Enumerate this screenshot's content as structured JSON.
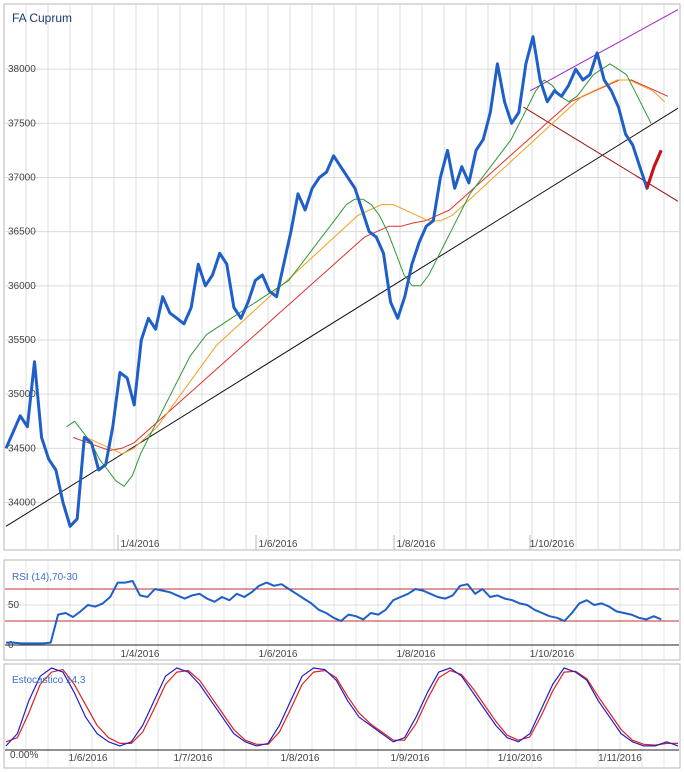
{
  "chart_data": [
    {
      "type": "line",
      "title": "FA Cuprum",
      "ylim": [
        33700,
        38500
      ],
      "y_ticks": [
        34000,
        34500,
        35000,
        35500,
        36000,
        36500,
        37000,
        37500,
        38000
      ],
      "x_tick_labels": [
        "1/4/2016",
        "1/6/2016",
        "1/8/2016",
        "1/10/2016"
      ],
      "grid": true,
      "legend": "none",
      "series": [
        {
          "key": "price",
          "color": "#1f5fc8",
          "values": [
            34500,
            34650,
            34800,
            34700,
            35300,
            34600,
            34400,
            34300,
            34000,
            33780,
            33850,
            34600,
            34550,
            34300,
            34350,
            34700,
            35200,
            35150,
            34900,
            35500,
            35700,
            35600,
            35900,
            35750,
            35700,
            35650,
            35800,
            36200,
            36000,
            36100,
            36300,
            36200,
            35800,
            35700,
            35850,
            36050,
            36100,
            35950,
            35900,
            36200,
            36500,
            36850,
            36700,
            36900,
            37000,
            37050,
            37200,
            37100,
            37000,
            36900,
            36700,
            36500,
            36450,
            36300,
            35850,
            35700,
            35900,
            36200,
            36400,
            36550,
            36600,
            37000,
            37250,
            36900,
            37100,
            36950,
            37250,
            37350,
            37600,
            38050,
            37700,
            37500,
            37600,
            38050,
            38300,
            37900,
            37700,
            37800,
            37750,
            37850,
            38000,
            37900,
            37950,
            38150,
            37900,
            37800,
            37650,
            37400,
            37300,
            37100,
            36900,
            37100,
            37250
          ]
        },
        {
          "key": "ma_short",
          "color": "#2e9a35",
          "values": [
            34700,
            34750,
            34650,
            34550,
            34400,
            34300,
            34200,
            34150,
            34250,
            34450,
            34600,
            34750,
            34900,
            35050,
            35200,
            35350,
            35450,
            35550,
            35600,
            35650,
            35700,
            35750,
            35800,
            35850,
            35900,
            35950,
            36000,
            36050,
            36150,
            36250,
            36350,
            36450,
            36550,
            36650,
            36750,
            36800,
            36800,
            36750,
            36650,
            36500,
            36300,
            36100,
            36000,
            36000,
            36100,
            36250,
            36400,
            36550,
            36700,
            36850,
            36950,
            37050,
            37150,
            37250,
            37350,
            37500,
            37650,
            37800,
            37900,
            37850,
            37750,
            37700,
            37750,
            37850,
            37950,
            38000,
            38050,
            38000,
            37950,
            37800,
            37650,
            37500
          ]
        },
        {
          "key": "ma_medium",
          "color": "#f0a020",
          "values": [
            34600,
            34550,
            34500,
            34450,
            34500,
            34600,
            34700,
            34850,
            35000,
            35150,
            35300,
            35450,
            35550,
            35650,
            35750,
            35850,
            35950,
            36050,
            36150,
            36250,
            36350,
            36450,
            36550,
            36650,
            36700,
            36750,
            36750,
            36700,
            36650,
            36600,
            36600,
            36650,
            36750,
            36850,
            36950,
            37050,
            37150,
            37250,
            37350,
            37450,
            37550,
            37650,
            37750,
            37800,
            37850,
            37900,
            37900,
            37850,
            37800,
            37700
          ]
        },
        {
          "key": "ma_long",
          "color": "#e03030",
          "values": [
            34600,
            34560,
            34520,
            34480,
            34500,
            34550,
            34650,
            34750,
            34850,
            34950,
            35050,
            35150,
            35250,
            35350,
            35450,
            35550,
            35650,
            35750,
            35850,
            35950,
            36050,
            36150,
            36250,
            36350,
            36450,
            36500,
            36550,
            36550,
            36580,
            36600,
            36650,
            36700,
            36800,
            36900,
            37000,
            37100,
            37200,
            37300,
            37400,
            37500,
            37600,
            37700,
            37750,
            37800,
            37850,
            37900,
            37900,
            37850,
            37800,
            37750
          ]
        }
      ],
      "trendlines": [
        {
          "key": "support",
          "color": "#111111",
          "from": [
            0.0,
            33780
          ],
          "to": [
            1.0,
            37640
          ]
        },
        {
          "key": "upper",
          "color": "#a020c8",
          "from": [
            0.78,
            37800
          ],
          "to": [
            1.0,
            38550
          ]
        },
        {
          "key": "fall",
          "color": "#a01010",
          "from": [
            0.77,
            37650
          ],
          "to": [
            1.0,
            36780
          ]
        }
      ]
    },
    {
      "type": "line",
      "title": "RSI (14),70-30",
      "ylim": [
        0,
        100
      ],
      "y_ticks": [
        0,
        50
      ],
      "levels": [
        70,
        30
      ],
      "x_tick_labels": [
        "1/4/2016",
        "1/6/2016",
        "1/8/2016",
        "1/10/2016"
      ],
      "series": [
        {
          "key": "rsi",
          "color": "#1f5fc8",
          "values": [
            3,
            3,
            2,
            2,
            2,
            2,
            3,
            38,
            40,
            35,
            42,
            50,
            48,
            52,
            60,
            78,
            78,
            80,
            62,
            60,
            70,
            68,
            66,
            62,
            58,
            62,
            64,
            58,
            54,
            60,
            56,
            64,
            60,
            66,
            74,
            78,
            74,
            76,
            70,
            64,
            58,
            52,
            44,
            40,
            34,
            30,
            38,
            36,
            32,
            40,
            38,
            44,
            56,
            60,
            64,
            70,
            68,
            64,
            60,
            58,
            62,
            74,
            76,
            64,
            70,
            60,
            62,
            58,
            56,
            52,
            50,
            44,
            40,
            36,
            34,
            30,
            40,
            52,
            56,
            50,
            52,
            48,
            42,
            40,
            38,
            34,
            32,
            36,
            32
          ]
        }
      ]
    },
    {
      "type": "line",
      "title": "Estocástico 14,3",
      "ylim": [
        0,
        100
      ],
      "y_ticks": [
        0
      ],
      "y_tick_labels": [
        "0.00%"
      ],
      "x_tick_labels": [
        "1/6/2016",
        "1/7/2016",
        "1/8/2016",
        "1/9/2016",
        "1/10/2016",
        "1/11/2016"
      ],
      "series": [
        {
          "key": "k",
          "color": "#2020c8",
          "values": [
            5,
            20,
            60,
            90,
            100,
            95,
            70,
            40,
            20,
            10,
            5,
            10,
            30,
            60,
            90,
            100,
            95,
            80,
            60,
            40,
            20,
            10,
            5,
            8,
            30,
            60,
            90,
            100,
            98,
            85,
            60,
            40,
            30,
            20,
            10,
            15,
            40,
            70,
            95,
            100,
            90,
            70,
            50,
            30,
            15,
            10,
            20,
            50,
            80,
            100,
            95,
            85,
            60,
            40,
            20,
            10,
            5,
            5,
            10,
            5
          ]
        },
        {
          "key": "d",
          "color": "#e02020",
          "values": [
            10,
            15,
            45,
            80,
            95,
            98,
            80,
            55,
            30,
            15,
            8,
            8,
            22,
            50,
            80,
            95,
            97,
            85,
            65,
            45,
            25,
            12,
            7,
            7,
            22,
            50,
            80,
            95,
            97,
            88,
            65,
            45,
            32,
            22,
            12,
            12,
            32,
            62,
            88,
            97,
            92,
            75,
            55,
            35,
            18,
            12,
            16,
            42,
            72,
            95,
            96,
            87,
            65,
            45,
            25,
            12,
            7,
            6,
            8,
            8
          ]
        }
      ]
    }
  ]
}
